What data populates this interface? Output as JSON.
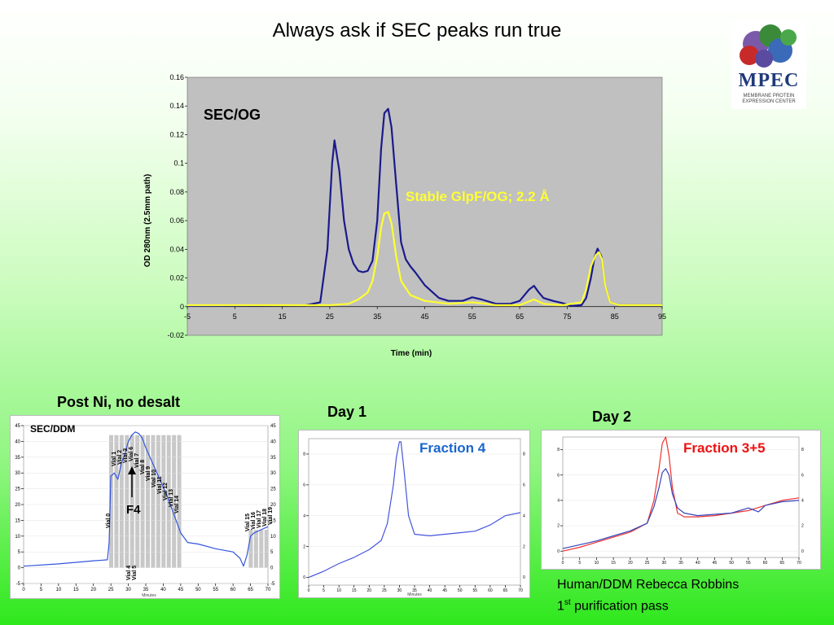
{
  "slide": {
    "title": "Always ask if SEC peaks run true",
    "logo_text": "MPEC",
    "logo_sub1": "MEMBRANE PROTEIN",
    "logo_sub2": "EXPRESSION CENTER",
    "credit_line1": "Human/DDM Rebecca Robbins",
    "credit_line2_num": "1",
    "credit_line2_sup": "st",
    "credit_line2_rest": " purification pass"
  },
  "chart_data": [
    {
      "type": "line",
      "id": "main",
      "annotation": "SEC/OG",
      "series_label_text": "Stable GlpF/OG; 2.2 Å",
      "xlabel": "Time (min)",
      "ylabel": "OD 280nm (2.5mm path)",
      "xlim": [
        -5,
        95
      ],
      "ylim": [
        -0.02,
        0.16
      ],
      "xticks": [
        -5,
        5,
        15,
        25,
        35,
        45,
        55,
        65,
        75,
        85,
        95
      ],
      "yticks": [
        "-0.02",
        "0",
        "0.02",
        "0.04",
        "0.06",
        "0.08",
        "0.1",
        "0.12",
        "0.14",
        "0.16"
      ],
      "background": "#c0c0c0",
      "series": [
        {
          "color": "#1a1a8c",
          "x": [
            -5,
            20,
            23,
            24.5,
            25.5,
            26,
            27,
            28,
            29,
            30,
            31,
            32,
            33,
            34,
            35,
            35.8,
            36.5,
            37.3,
            38,
            39,
            40,
            41,
            42,
            43,
            45,
            48,
            50,
            53,
            55,
            57,
            60,
            63,
            65,
            67,
            68,
            69,
            70,
            72,
            74,
            76,
            78,
            79,
            80,
            80.8,
            81.4,
            82.2,
            83,
            84,
            86,
            88,
            95
          ],
          "y": [
            0.0005,
            0.001,
            0.003,
            0.04,
            0.1,
            0.116,
            0.095,
            0.06,
            0.04,
            0.03,
            0.025,
            0.024,
            0.025,
            0.032,
            0.06,
            0.11,
            0.135,
            0.138,
            0.125,
            0.085,
            0.045,
            0.033,
            0.028,
            0.024,
            0.015,
            0.006,
            0.004,
            0.004,
            0.0065,
            0.005,
            0.002,
            0.002,
            0.004,
            0.012,
            0.0145,
            0.01,
            0.006,
            0.004,
            0.0025,
            0.0005,
            0.001,
            0.006,
            0.02,
            0.035,
            0.0405,
            0.035,
            0.015,
            0.003,
            0.001,
            0.001,
            0.001
          ]
        },
        {
          "color": "#ffff33",
          "x": [
            -5,
            20,
            25,
            29,
            31,
            33,
            34,
            35,
            35.8,
            36.5,
            37.3,
            38,
            39,
            40,
            42,
            45,
            50,
            55,
            58,
            60,
            65,
            68,
            70,
            74,
            78,
            79,
            80,
            81,
            81.7,
            82.3,
            83,
            84,
            86,
            95
          ],
          "y": [
            0.001,
            0.001,
            0.001,
            0.002,
            0.005,
            0.01,
            0.018,
            0.035,
            0.055,
            0.065,
            0.066,
            0.058,
            0.035,
            0.018,
            0.008,
            0.004,
            0.002,
            0.003,
            0.002,
            0.001,
            0.001,
            0.005,
            0.002,
            0.001,
            0.003,
            0.012,
            0.028,
            0.036,
            0.038,
            0.033,
            0.015,
            0.003,
            0.001,
            0.001
          ]
        }
      ]
    },
    {
      "type": "line",
      "id": "post_ni",
      "title": "Post Ni, no desalt",
      "annotation": "SEC/DDM",
      "arrow_label": "F4",
      "xlabel": "Minutes",
      "xlim": [
        0,
        70
      ],
      "ylim": [
        -5,
        45
      ],
      "xticks": [
        "0",
        "5",
        "10",
        "15",
        "20",
        "25",
        "30",
        "35",
        "40",
        "45",
        "50",
        "55",
        "60",
        "65",
        "70"
      ],
      "yticks": [
        "-5",
        "0",
        "5",
        "10",
        "15",
        "20",
        "25",
        "30",
        "35",
        "40",
        "45"
      ],
      "vials_top": [
        "Vial 0",
        "Vial 1",
        "Vial 2",
        "Vial 3",
        "Vial 6",
        "Vial 7",
        "Vial 8",
        "Vial 9",
        "Vial 10",
        "Vial 11",
        "Vial 12",
        "Vial 13",
        "Vial 14"
      ],
      "vials_bottom": [
        "Vial 4",
        "Vial 5"
      ],
      "vials_right": [
        "Vial 15",
        "Vial 16",
        "Vial 17",
        "Vial 18",
        "Vial 19"
      ],
      "series": [
        {
          "color": "#3355dd",
          "x": [
            0,
            10,
            20,
            24,
            24.5,
            25,
            26,
            27,
            28,
            29,
            30,
            31,
            32,
            33,
            34,
            35,
            37,
            39,
            41,
            43,
            45,
            47,
            50,
            55,
            60,
            62,
            63,
            64,
            65,
            66,
            68,
            70
          ],
          "y": [
            0.5,
            1.2,
            2.2,
            2.5,
            8,
            29,
            30,
            28,
            33,
            36,
            40,
            42,
            43,
            42.5,
            41,
            38,
            33,
            28,
            23,
            17,
            11,
            8,
            7.5,
            6,
            5,
            3,
            0.5,
            4,
            10,
            11,
            12,
            13
          ]
        }
      ]
    },
    {
      "type": "line",
      "id": "day1",
      "title": "Day 1",
      "series_label_text": "Fraction 4",
      "xlabel": "Minutes",
      "xlim": [
        0,
        70
      ],
      "ylim": [
        -0.5,
        9
      ],
      "xticks": [
        "0",
        "5",
        "10",
        "15",
        "20",
        "25",
        "30",
        "35",
        "40",
        "45",
        "50",
        "55",
        "60",
        "65",
        "70"
      ],
      "yticks": [
        "0",
        "2",
        "4",
        "6",
        "8"
      ],
      "series": [
        {
          "color": "#4455dd",
          "x": [
            0,
            5,
            10,
            15,
            20,
            24,
            26,
            28,
            29,
            30,
            30.5,
            31.5,
            33,
            35,
            40,
            45,
            50,
            55,
            60,
            65,
            70
          ],
          "y": [
            0,
            0.4,
            0.9,
            1.3,
            1.8,
            2.4,
            3.5,
            6,
            7.8,
            8.8,
            8.8,
            7,
            4,
            2.8,
            2.7,
            2.8,
            2.9,
            3,
            3.4,
            4,
            4.2
          ]
        }
      ]
    },
    {
      "type": "line",
      "id": "day2",
      "title": "Day 2",
      "series_label_text": "Fraction 3+5",
      "xlim": [
        0,
        70
      ],
      "ylim": [
        -0.5,
        9
      ],
      "xticks": [
        "0",
        "5",
        "10",
        "15",
        "20",
        "25",
        "30",
        "35",
        "40",
        "45",
        "50",
        "55",
        "60",
        "65",
        "70"
      ],
      "yticks": [
        "0",
        "2",
        "4",
        "6",
        "8"
      ],
      "series": [
        {
          "color": "#ee3333",
          "x": [
            0,
            5,
            10,
            15,
            20,
            25,
            27,
            28.5,
            29.5,
            30.5,
            31.5,
            32.5,
            34,
            36,
            40,
            45,
            50,
            55,
            60,
            65,
            70
          ],
          "y": [
            0,
            0.3,
            0.7,
            1.1,
            1.5,
            2.2,
            4,
            6.5,
            8.5,
            9,
            7.5,
            5,
            3,
            2.7,
            2.7,
            2.8,
            3,
            3.2,
            3.6,
            4,
            4.2
          ]
        },
        {
          "color": "#3344bb",
          "x": [
            0,
            5,
            10,
            15,
            20,
            25,
            27,
            28.5,
            29.5,
            30.5,
            31.5,
            32.5,
            34,
            36,
            40,
            45,
            50,
            55,
            58,
            60,
            65,
            70
          ],
          "y": [
            0.2,
            0.5,
            0.8,
            1.2,
            1.6,
            2.2,
            3.5,
            5,
            6.2,
            6.5,
            6,
            4.5,
            3.4,
            3,
            2.8,
            2.9,
            3,
            3.4,
            3.1,
            3.6,
            3.9,
            4
          ]
        }
      ]
    }
  ]
}
